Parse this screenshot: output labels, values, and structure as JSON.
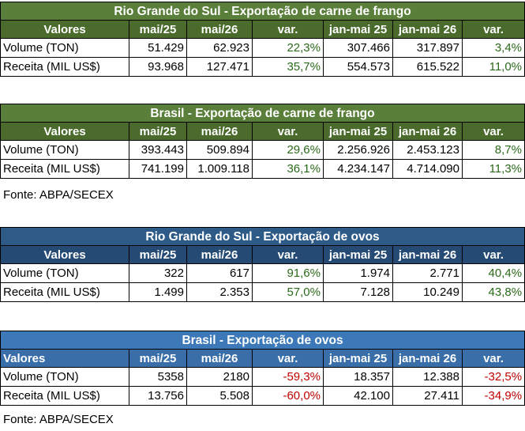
{
  "tables": [
    {
      "title": "Rio Grande do Sul - Exportação de carne de frango",
      "headers": [
        "Valores",
        "mai/25",
        "mai/26",
        "var.",
        "jan-mai 25",
        "jan-mai 26",
        "var."
      ],
      "rows": [
        [
          "Volume (TON)",
          "51.429",
          "62.923",
          "22,3%",
          "307.466",
          "317.897",
          "3,4%"
        ],
        [
          "Receita (MIL US$)",
          "93.968",
          "127.471",
          "35,7%",
          "554.573",
          "615.522",
          "11,0%"
        ]
      ]
    },
    {
      "title": "Brasil -  Exportação de carne de frango",
      "headers": [
        "Valores",
        "mai/25",
        "mai/26",
        "var.",
        "jan-mai 25",
        "jan-mai 26",
        "var."
      ],
      "rows": [
        [
          "Volume (TON)",
          "393.443",
          "509.894",
          "29,6%",
          "2.256.926",
          "2.453.123",
          "8,7%"
        ],
        [
          "Receita (MIL US$)",
          "741.199",
          "1.009.118",
          "36,1%",
          "4.234.147",
          "4.714.090",
          "11,3%"
        ]
      ]
    },
    {
      "title": "Rio Grande do Sul - Exportação de ovos",
      "headers": [
        "Valores",
        "mai/25",
        "mai/26",
        "var.",
        "jan-mai 25",
        "jan-mai 26",
        "var."
      ],
      "rows": [
        [
          "Volume (TON)",
          "322",
          "617",
          "91,6%",
          "1.974",
          "2.771",
          "40,4%"
        ],
        [
          "Receita (MIL US$)",
          "1.499",
          "2.353",
          "57,0%",
          "7.128",
          "10.249",
          "43,8%"
        ]
      ]
    },
    {
      "title": "Brasil -  Exportação de ovos",
      "headers": [
        "Valores",
        "mai/25",
        "mai/26",
        "var.",
        "jan-mai 25",
        "jan-mai 26",
        "var."
      ],
      "rows": [
        [
          "Volume (TON)",
          "5358",
          "2180",
          "-59,3%",
          "18.357",
          "12.388",
          "-32,5%"
        ],
        [
          "Receita (MIL US$)",
          "13.756",
          "5.508",
          "-60,0%",
          "42.100",
          "27.411",
          "-34,9%"
        ]
      ]
    }
  ],
  "sources": [
    "Fonte: ABPA/SECEX",
    "Fonte: ABPA/SECEX"
  ],
  "colors": {
    "green_title": "#5a7f3a",
    "green_header": "#4a6b2c",
    "blue_title": "#2e5a88",
    "blue2_title": "#3d79b8",
    "positive_text": "#2a6a1a",
    "negative_text": "#c00000"
  }
}
